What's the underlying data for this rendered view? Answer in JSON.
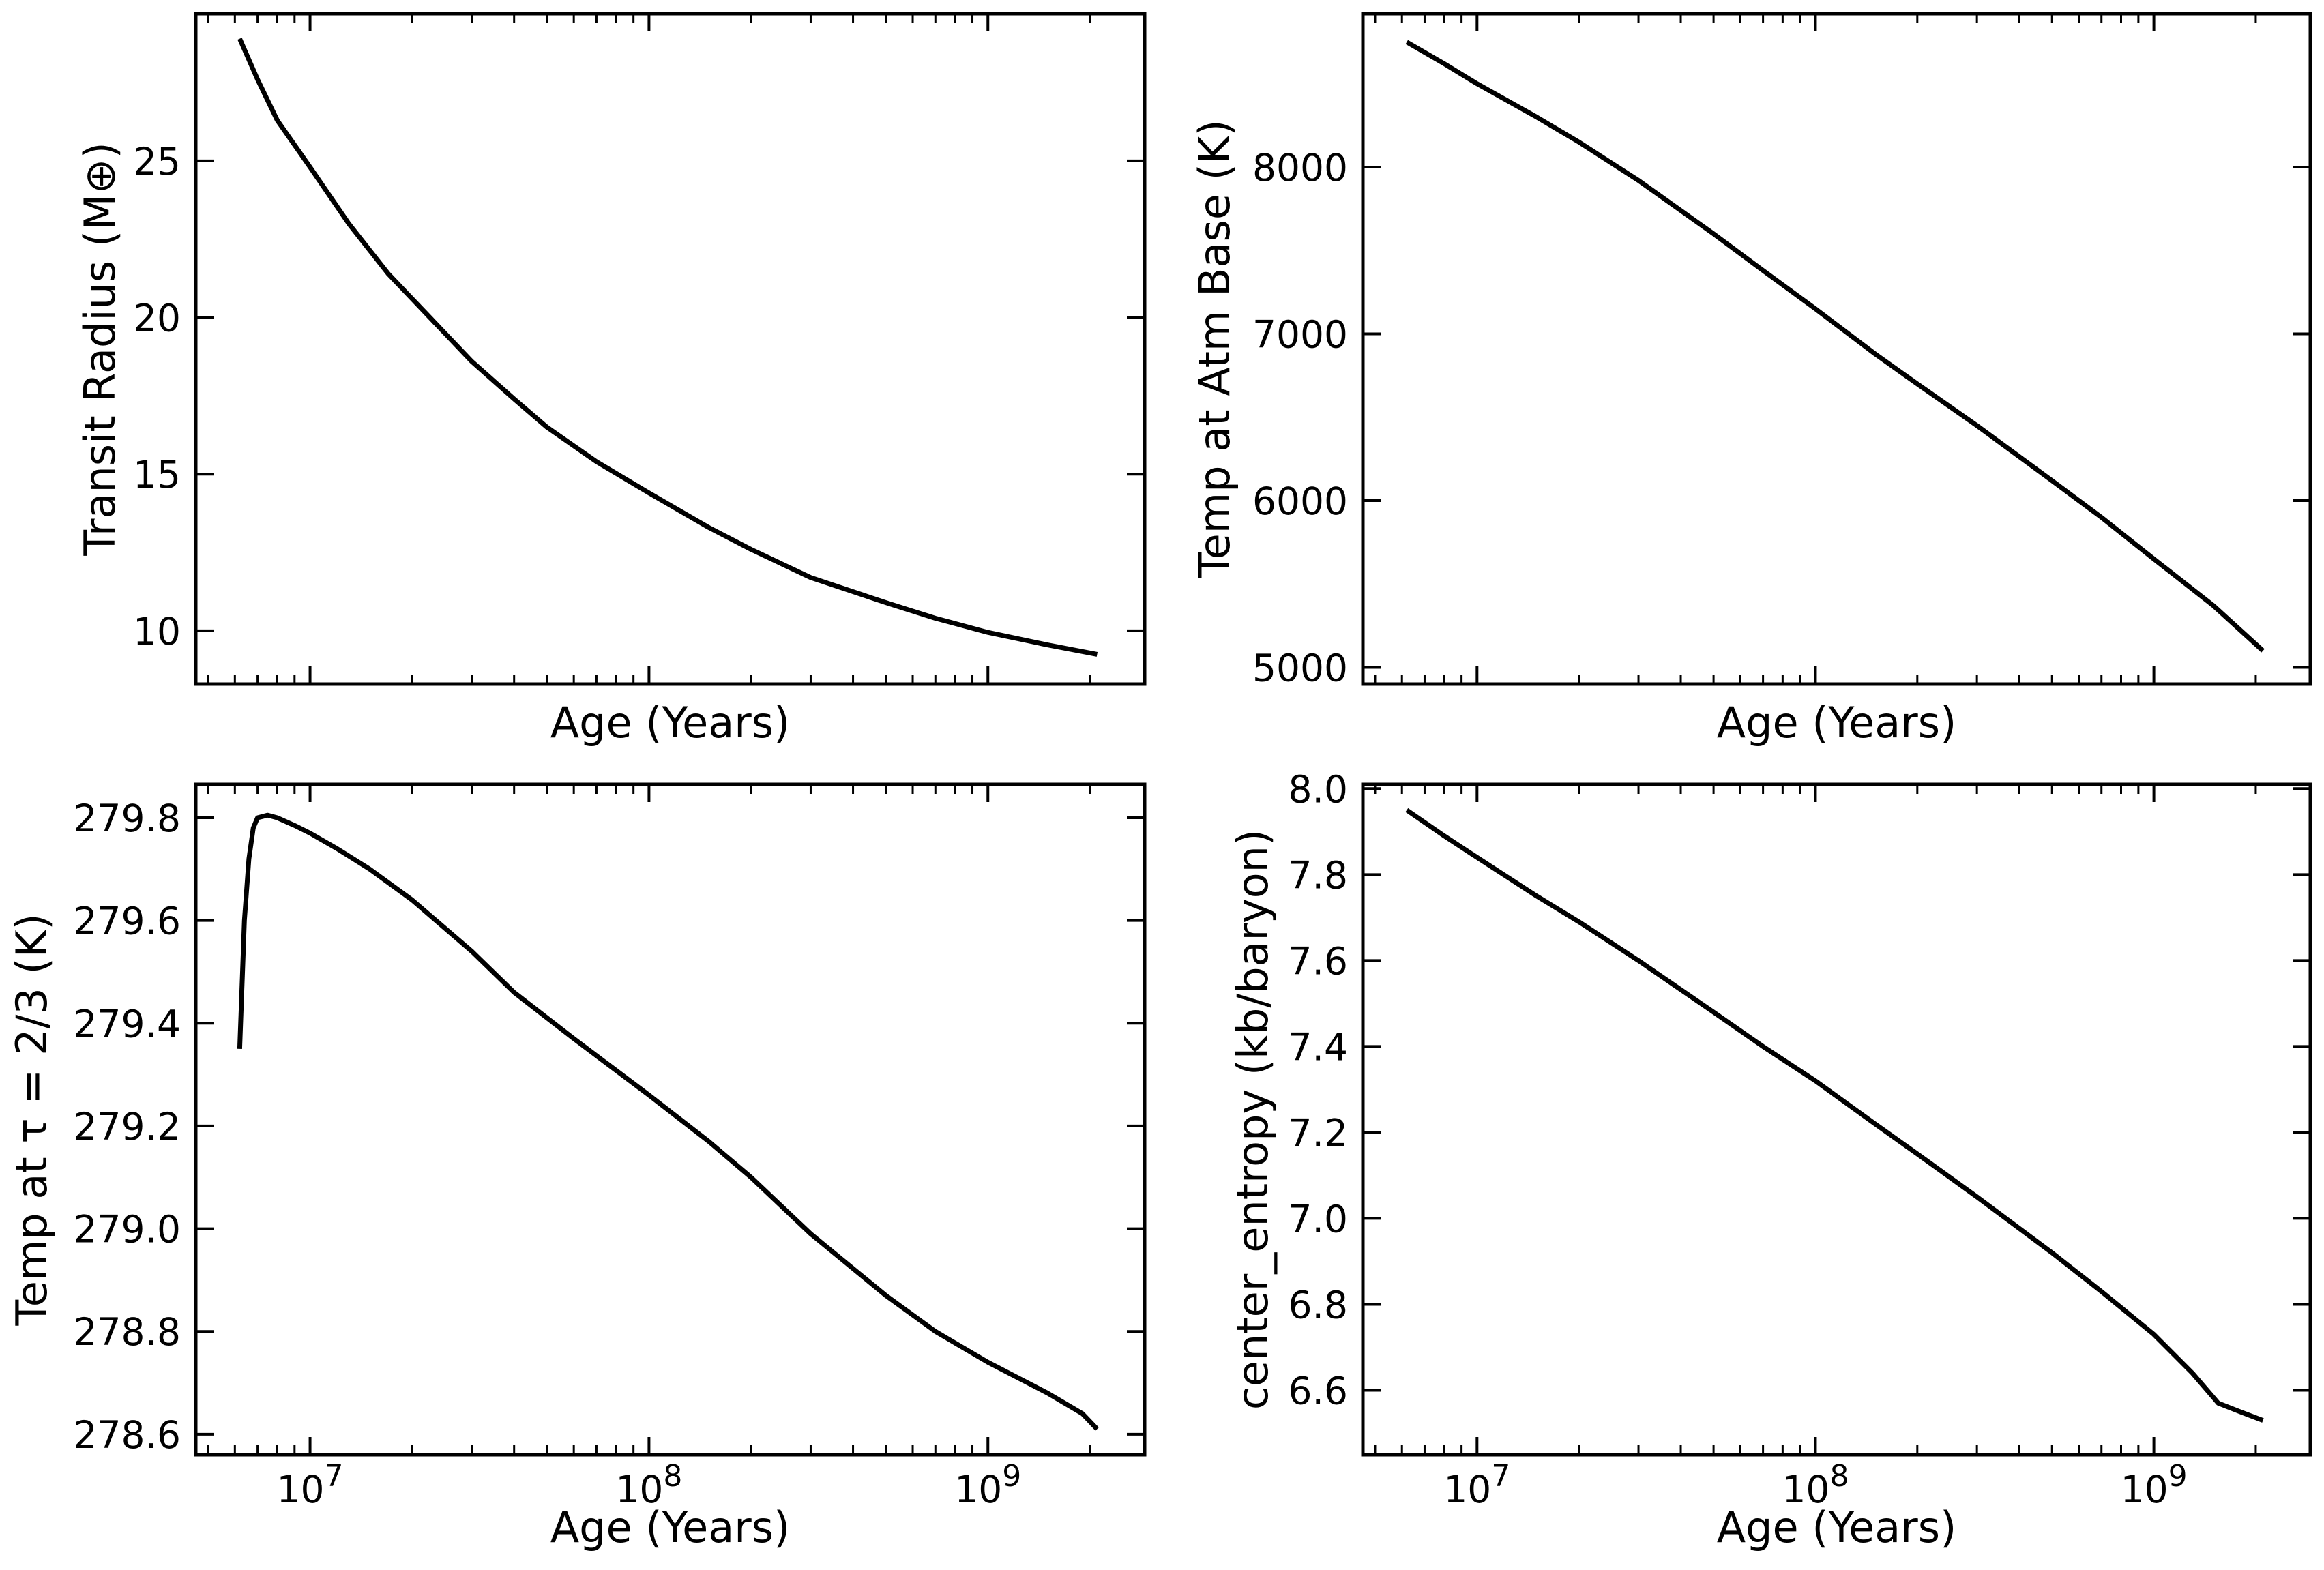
{
  "chart_data": [
    {
      "type": "line",
      "xlabel": "",
      "ylabel": "Transit Radius (M⊕)",
      "xscale": "log",
      "xlim": [
        4600000.0,
        2900000000.0
      ],
      "ylim": [
        8.3,
        29.7
      ],
      "xticks": [
        10000000.0,
        100000000.0,
        1000000000.0
      ],
      "xtick_labels_visible": false,
      "yticks": [
        10,
        15,
        20,
        25
      ],
      "ytick_labels": [
        "10",
        "15",
        "20",
        "25"
      ],
      "grid": false,
      "series": [
        {
          "color": "#000000",
          "x": [
            6200000.0,
            7000000.0,
            8000000.0,
            10000000.0,
            13000000.0,
            17000000.0,
            20000000.0,
            30000000.0,
            40000000.0,
            50000000.0,
            70000000.0,
            100000000.0,
            150000000.0,
            200000000.0,
            300000000.0,
            500000000.0,
            700000000.0,
            1000000000.0,
            1500000000.0,
            2100000000.0
          ],
          "y": [
            28.9,
            27.6,
            26.3,
            24.8,
            23.0,
            21.4,
            20.6,
            18.6,
            17.4,
            16.5,
            15.4,
            14.4,
            13.3,
            12.6,
            11.7,
            10.9,
            10.4,
            9.95,
            9.55,
            9.25
          ]
        }
      ]
    },
    {
      "type": "line",
      "xlabel": "",
      "ylabel": "Temp at Atm Base (K)",
      "xscale": "log",
      "xlim": [
        4600000.0,
        2900000000.0
      ],
      "ylim": [
        4900,
        8920
      ],
      "xticks": [
        10000000.0,
        100000000.0,
        1000000000.0
      ],
      "xtick_labels_visible": false,
      "yticks": [
        5000,
        6000,
        7000,
        8000
      ],
      "ytick_labels": [
        "5000",
        "6000",
        "7000",
        "8000"
      ],
      "grid": false,
      "series": [
        {
          "color": "#000000",
          "x": [
            6200000.0,
            8000000.0,
            10000000.0,
            15000000.0,
            20000000.0,
            30000000.0,
            50000000.0,
            70000000.0,
            100000000.0,
            150000000.0,
            200000000.0,
            300000000.0,
            500000000.0,
            700000000.0,
            1000000000.0,
            1500000000.0,
            2100000000.0
          ],
          "y": [
            8750,
            8620,
            8500,
            8300,
            8150,
            7920,
            7600,
            7380,
            7150,
            6880,
            6700,
            6450,
            6120,
            5900,
            5650,
            5370,
            5100
          ]
        }
      ]
    },
    {
      "type": "line",
      "xlabel": "Age (Years)",
      "ylabel": "Temp at τ = 2/3 (K)",
      "xscale": "log",
      "xlim": [
        4600000.0,
        2900000000.0
      ],
      "ylim": [
        278.56,
        279.865
      ],
      "xticks": [
        10000000.0,
        100000000.0,
        1000000000.0
      ],
      "xtick_labels": [
        "10",
        "10",
        "10"
      ],
      "xtick_exponents": [
        "7",
        "8",
        "9"
      ],
      "yticks": [
        278.6,
        278.8,
        279.0,
        279.2,
        279.4,
        279.6,
        279.8
      ],
      "ytick_labels": [
        "278.6",
        "278.8",
        "279.0",
        "279.2",
        "279.4",
        "279.6",
        "279.8"
      ],
      "grid": false,
      "series": [
        {
          "color": "#000000",
          "x": [
            6200000.0,
            6400000.0,
            6600000.0,
            6800000.0,
            7000000.0,
            7500000.0,
            8000000.0,
            9000000.0,
            10000000.0,
            12000000.0,
            15000000.0,
            20000000.0,
            30000000.0,
            40000000.0,
            60000000.0,
            100000000.0,
            150000000.0,
            200000000.0,
            300000000.0,
            500000000.0,
            700000000.0,
            1000000000.0,
            1500000000.0,
            1900000000.0,
            2100000000.0
          ],
          "y": [
            279.35,
            279.6,
            279.72,
            279.78,
            279.8,
            279.805,
            279.8,
            279.785,
            279.77,
            279.74,
            279.7,
            279.64,
            279.54,
            279.46,
            279.37,
            279.26,
            279.17,
            279.1,
            278.99,
            278.87,
            278.8,
            278.74,
            278.68,
            278.64,
            278.61
          ]
        }
      ]
    },
    {
      "type": "line",
      "xlabel": "Age (Years)",
      "ylabel": "center_entropy (kb/baryon)",
      "xscale": "log",
      "xlim": [
        4600000.0,
        2900000000.0
      ],
      "ylim": [
        6.45,
        8.01
      ],
      "xticks": [
        10000000.0,
        100000000.0,
        1000000000.0
      ],
      "xtick_labels": [
        "10",
        "10",
        "10"
      ],
      "xtick_exponents": [
        "7",
        "8",
        "9"
      ],
      "yticks": [
        6.6,
        6.8,
        7.0,
        7.2,
        7.4,
        7.6,
        7.8,
        8.0
      ],
      "ytick_labels": [
        "6.6",
        "6.8",
        "7.0",
        "7.2",
        "7.4",
        "7.6",
        "7.8",
        "8.0"
      ],
      "grid": false,
      "series": [
        {
          "color": "#000000",
          "x": [
            6200000.0,
            8000000.0,
            10000000.0,
            15000000.0,
            20000000.0,
            30000000.0,
            50000000.0,
            70000000.0,
            100000000.0,
            150000000.0,
            200000000.0,
            300000000.0,
            500000000.0,
            700000000.0,
            1000000000.0,
            1300000000.0,
            1550000000.0,
            1800000000.0,
            2100000000.0
          ],
          "y": [
            7.95,
            7.89,
            7.84,
            7.75,
            7.69,
            7.6,
            7.48,
            7.4,
            7.32,
            7.22,
            7.15,
            7.05,
            6.92,
            6.83,
            6.73,
            6.64,
            6.57,
            6.55,
            6.53
          ]
        }
      ]
    }
  ]
}
